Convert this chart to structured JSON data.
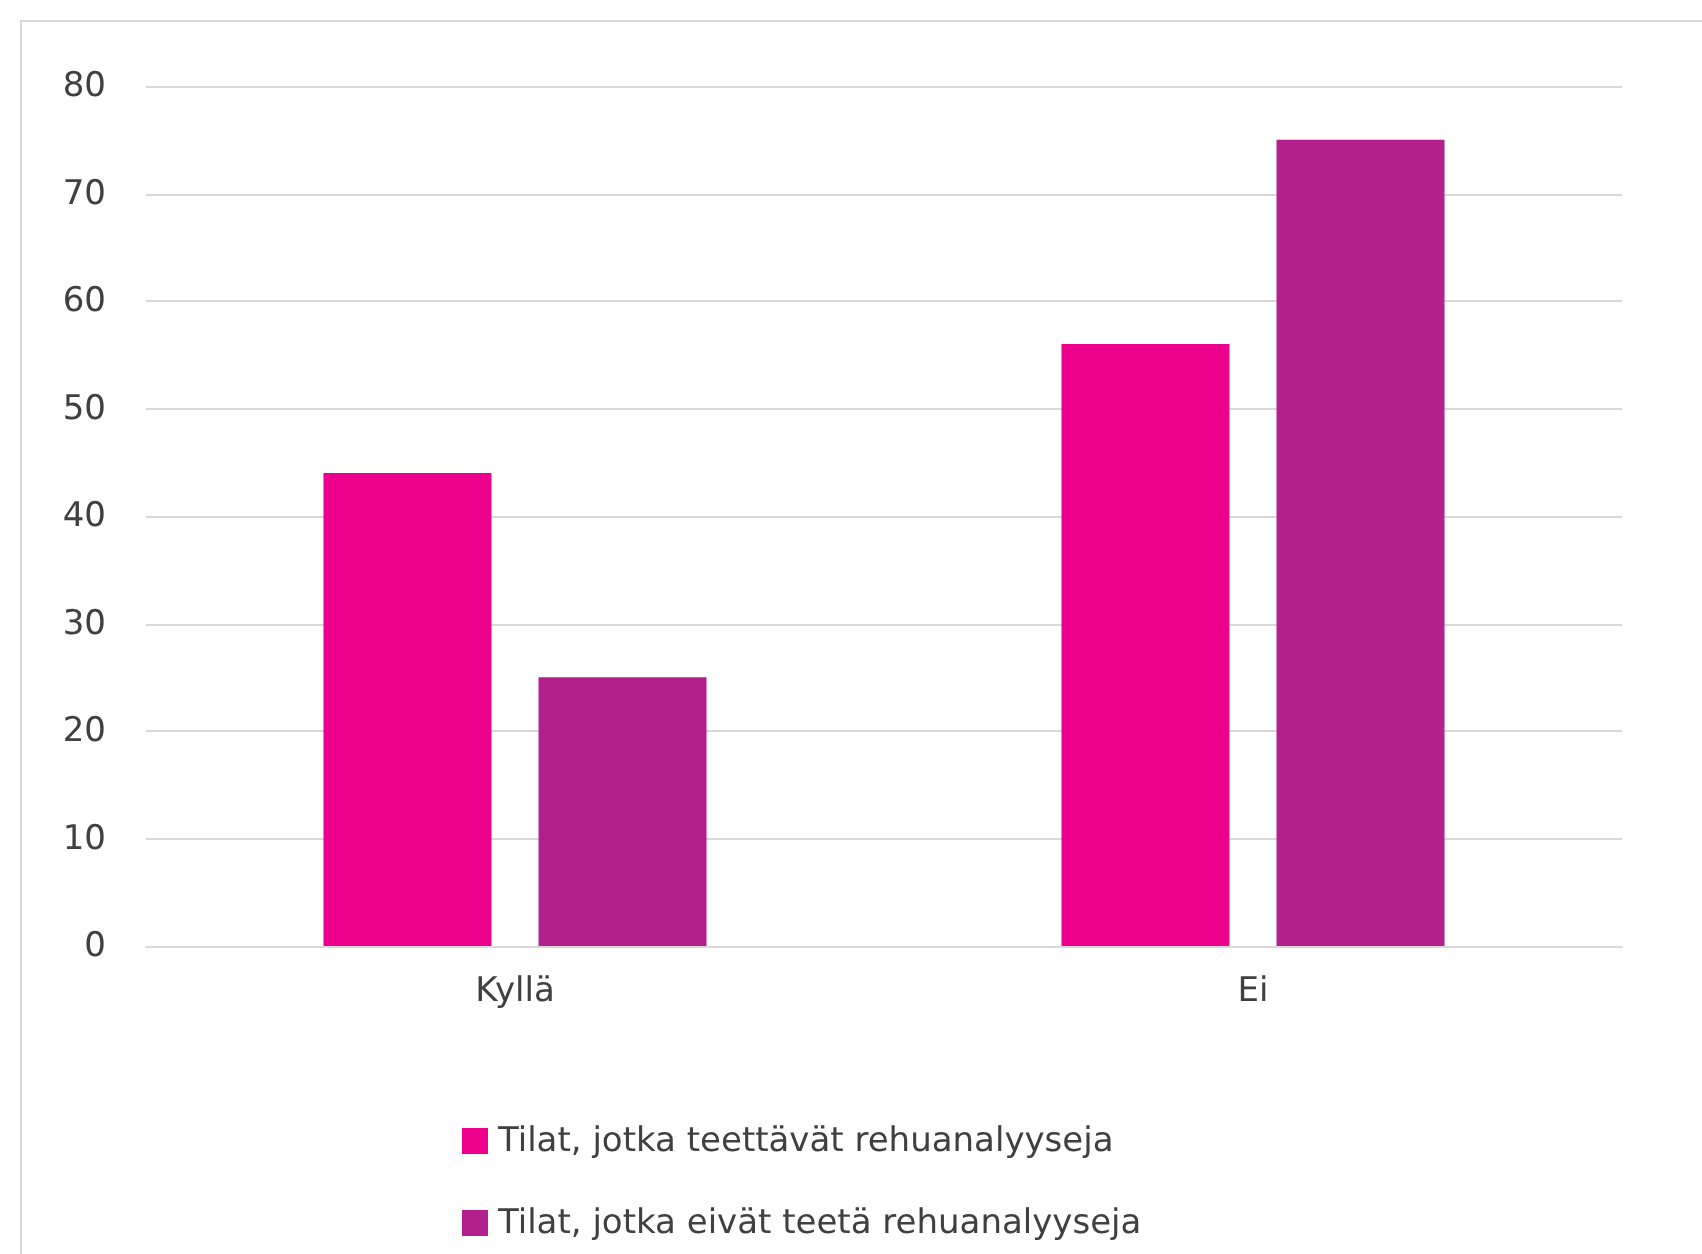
{
  "chart_data": {
    "type": "bar",
    "categories": [
      "Kyllä",
      "Ei"
    ],
    "series": [
      {
        "name": "Tilat, jotka teettävät rehuanalyyseja",
        "color": "#ec008c",
        "values": [
          44,
          56
        ]
      },
      {
        "name": "Tilat, jotka eivät teetä rehuanalyyseja",
        "color": "#b41f8e",
        "values": [
          25,
          75
        ]
      }
    ],
    "ylim": [
      0,
      80
    ],
    "yticks": [
      0,
      10,
      20,
      30,
      40,
      50,
      60,
      70,
      80
    ],
    "grid": "y",
    "legend": "bottom"
  }
}
